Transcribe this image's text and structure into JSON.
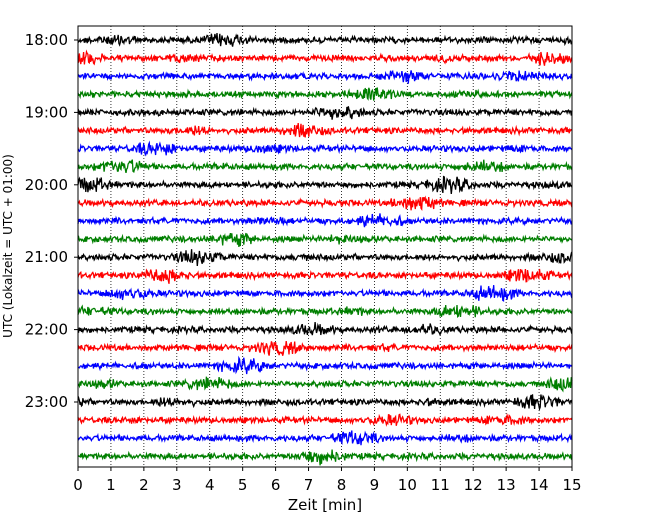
{
  "chart_data": {
    "type": "line",
    "title": "",
    "xlabel": "Zeit  [min]",
    "ylabel": "UTC (Lokalzeit = UTC + 01:00)",
    "xlim": [
      0,
      15
    ],
    "x_ticks": [
      "0",
      "1",
      "2",
      "3",
      "4",
      "5",
      "6",
      "7",
      "8",
      "9",
      "10",
      "11",
      "12",
      "13",
      "14",
      "15"
    ],
    "y_ticks": [
      "18:00",
      "19:00",
      "20:00",
      "21:00",
      "22:00",
      "23:00"
    ],
    "traces_per_hour": 4,
    "trace_start_times": [
      "18:00",
      "18:15",
      "18:30",
      "18:45",
      "19:00",
      "19:15",
      "19:30",
      "19:45",
      "20:00",
      "20:15",
      "20:30",
      "20:45",
      "21:00",
      "21:15",
      "21:30",
      "21:45",
      "22:00",
      "22:15",
      "22:30",
      "22:45",
      "23:00",
      "23:15",
      "23:30",
      "23:45"
    ],
    "trace_colors": [
      "#000000",
      "#ff0000",
      "#0000ff",
      "#007f00"
    ],
    "grid": "vertical dotted",
    "legend": "none"
  }
}
